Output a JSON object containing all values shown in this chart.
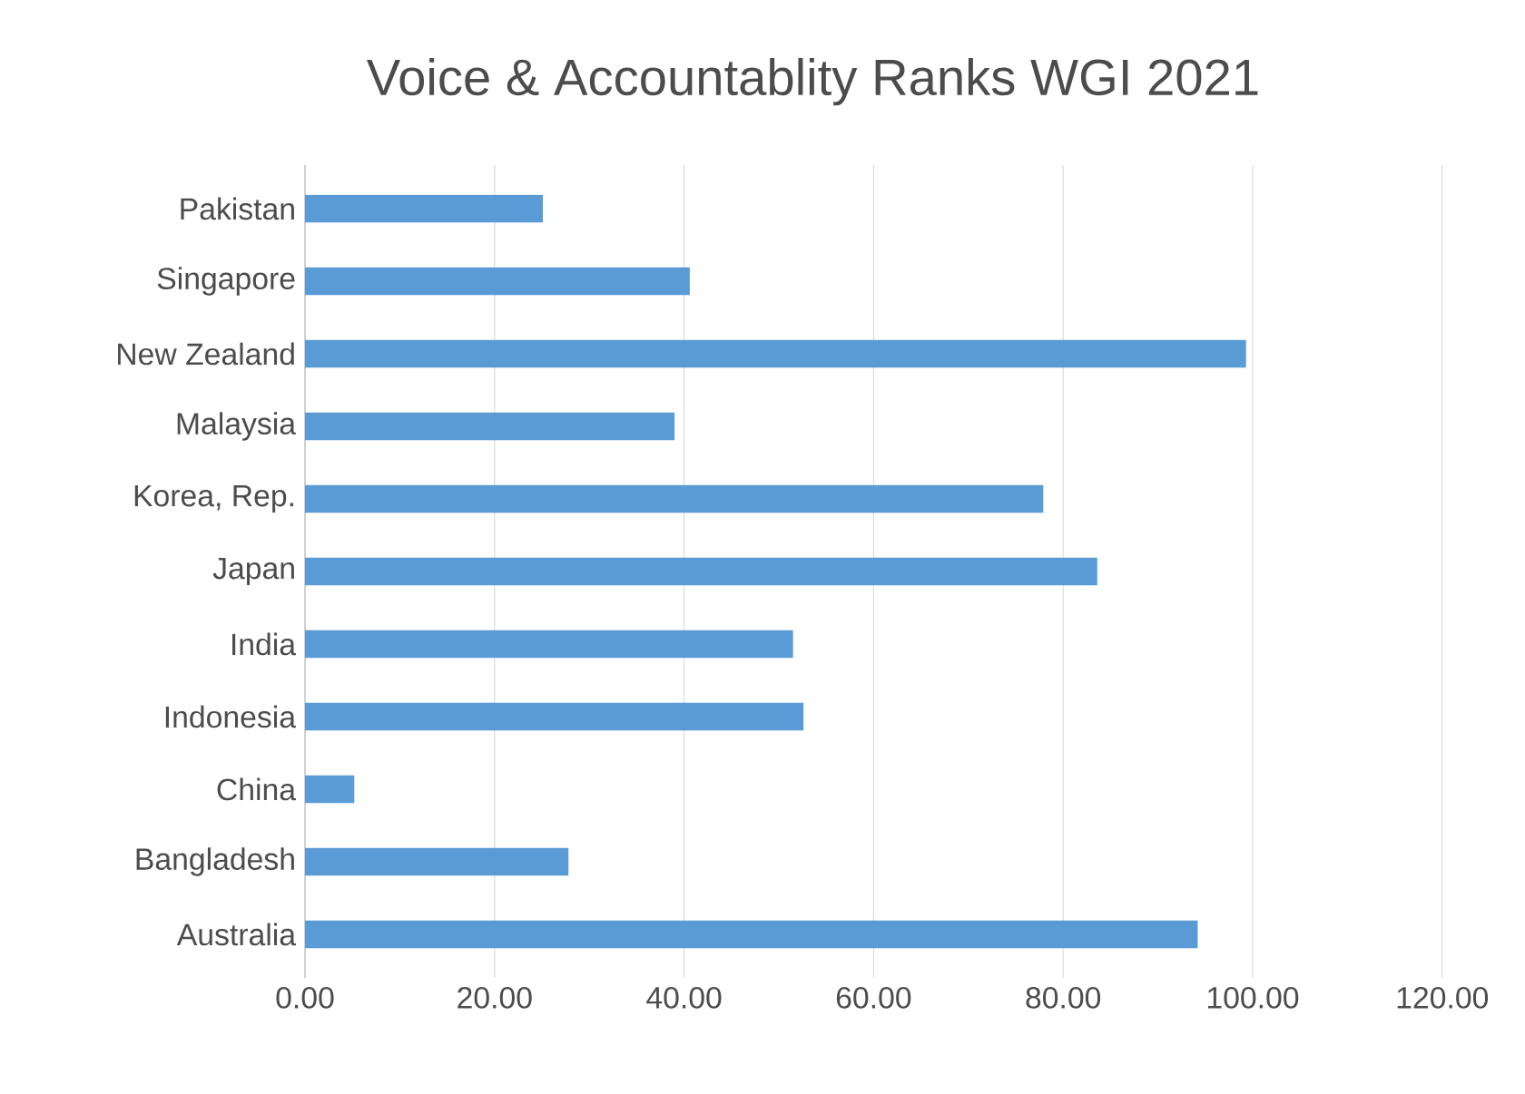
{
  "chart_data": {
    "type": "bar",
    "orientation": "horizontal",
    "title": "Voice & Accountablity Ranks WGI 2021",
    "categories": [
      "Pakistan",
      "Singapore",
      "New Zealand",
      "Malaysia",
      "Korea, Rep.",
      "Japan",
      "India",
      "Indonesia",
      "China",
      "Bangladesh",
      "Australia"
    ],
    "values": [
      25.1,
      40.6,
      99.3,
      39.0,
      77.9,
      83.6,
      51.5,
      52.6,
      5.2,
      27.8,
      94.2
    ],
    "color": "#5b9bd5",
    "xlim": [
      0,
      120
    ],
    "xticks": [
      {
        "value": 0,
        "label": "0.00"
      },
      {
        "value": 20,
        "label": "20.00"
      },
      {
        "value": 40,
        "label": "40.00"
      },
      {
        "value": 60,
        "label": "60.00"
      },
      {
        "value": 80,
        "label": "80.00"
      },
      {
        "value": 100,
        "label": "100.00"
      },
      {
        "value": 120,
        "label": "120.00"
      }
    ],
    "grid": "x"
  }
}
